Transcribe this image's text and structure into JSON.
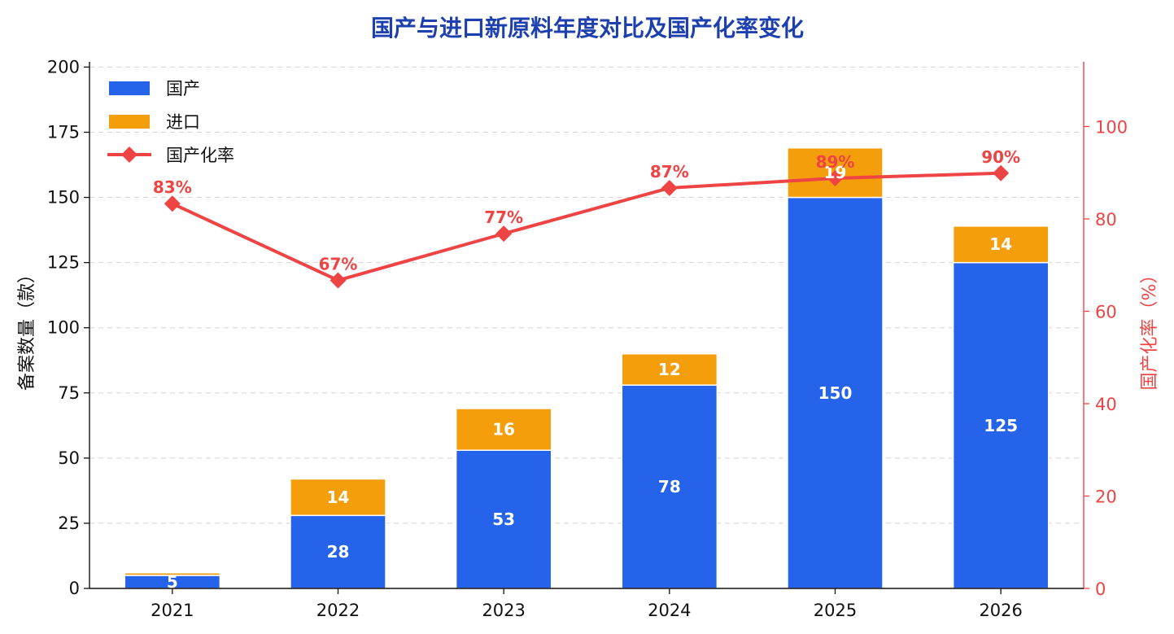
{
  "chart_data": {
    "type": "bar",
    "title": "国产与进口新原料年度对比及国产化率变化",
    "categories": [
      "2021",
      "2022",
      "2023",
      "2024",
      "2025",
      "2026"
    ],
    "series": [
      {
        "name": "国产",
        "type": "bar",
        "stacked": true,
        "axis": "left",
        "color": "#2563EB",
        "values": [
          5,
          28,
          53,
          78,
          150,
          125
        ]
      },
      {
        "name": "进口",
        "type": "bar",
        "stacked": true,
        "axis": "left",
        "color": "#F59E0B",
        "values": [
          1,
          14,
          16,
          12,
          19,
          14
        ]
      },
      {
        "name": "国产化率",
        "type": "line",
        "marker": "diamond",
        "axis": "right",
        "color": "#EF4444",
        "values": [
          83.3,
          66.7,
          76.8,
          86.7,
          88.8,
          89.9
        ]
      }
    ],
    "bar_labels": {
      "国产": [
        "5",
        "28",
        "53",
        "78",
        "150",
        "125"
      ],
      "进口": [
        "",
        "14",
        "16",
        "12",
        "19",
        "14"
      ]
    },
    "rate_labels": [
      "83%",
      "67%",
      "77%",
      "87%",
      "89%",
      "90%"
    ],
    "ylabel": "备案数量（款）",
    "ylabel_right": "国产化率（%）",
    "ylim": [
      0,
      202
    ],
    "yticks": [
      "0",
      "25",
      "50",
      "75",
      "100",
      "125",
      "150",
      "175",
      "200"
    ],
    "ylim_right": [
      0,
      114
    ],
    "yticks_right": [
      "0",
      "20",
      "40",
      "60",
      "80",
      "100"
    ],
    "grid": "horizontal dashed",
    "legend_position": "top-left",
    "title_color": "#1E40AF",
    "right_axis_color": "#EF4444"
  }
}
